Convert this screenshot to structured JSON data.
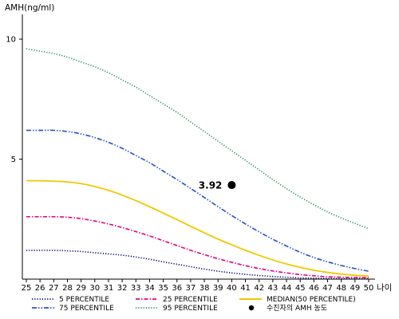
{
  "chart_data": {
    "type": "line",
    "title": "",
    "ylabel": "AMH(ng/ml)",
    "xlabel": "나이",
    "xlim": [
      25,
      50
    ],
    "ylim": [
      0,
      11
    ],
    "x_ticks": [
      25,
      26,
      27,
      28,
      29,
      30,
      31,
      32,
      33,
      34,
      35,
      36,
      37,
      38,
      39,
      40,
      41,
      42,
      43,
      44,
      45,
      46,
      47,
      48,
      49,
      50
    ],
    "y_ticks": [
      5,
      10
    ],
    "grid": false,
    "legend_placement": "bottom",
    "series": [
      {
        "name": "5 PERCENTILE",
        "color": "#000080",
        "dash": "dotted",
        "x": [
          25,
          26,
          27,
          28,
          29,
          30,
          31,
          32,
          33,
          34,
          35,
          36,
          37,
          38,
          39,
          40,
          41,
          42,
          43,
          44,
          45,
          46,
          47,
          48,
          49,
          50
        ],
        "values": [
          1.2,
          1.2,
          1.2,
          1.18,
          1.15,
          1.1,
          1.05,
          1.0,
          0.92,
          0.83,
          0.72,
          0.62,
          0.52,
          0.42,
          0.33,
          0.26,
          0.2,
          0.15,
          0.11,
          0.08,
          0.05,
          0.04,
          0.03,
          0.02,
          0.02,
          0.02
        ]
      },
      {
        "name": "25 PERCENTILE",
        "color": "#e6007e",
        "dash": "dashdot",
        "x": [
          25,
          26,
          27,
          28,
          29,
          30,
          31,
          32,
          33,
          34,
          35,
          36,
          37,
          38,
          39,
          40,
          41,
          42,
          43,
          44,
          45,
          46,
          47,
          48,
          49,
          50
        ],
        "values": [
          2.6,
          2.6,
          2.6,
          2.58,
          2.52,
          2.42,
          2.3,
          2.15,
          1.98,
          1.8,
          1.6,
          1.4,
          1.2,
          1.02,
          0.85,
          0.7,
          0.56,
          0.44,
          0.34,
          0.26,
          0.19,
          0.14,
          0.1,
          0.08,
          0.07,
          0.06
        ]
      },
      {
        "name": "MEDIAN(50 PERCENTILE)",
        "color": "#f0c800",
        "dash": "solid",
        "x": [
          25,
          26,
          27,
          28,
          29,
          30,
          31,
          32,
          33,
          34,
          35,
          36,
          37,
          38,
          39,
          40,
          41,
          42,
          43,
          44,
          45,
          46,
          47,
          48,
          49,
          50
        ],
        "values": [
          4.1,
          4.1,
          4.08,
          4.05,
          3.98,
          3.86,
          3.7,
          3.5,
          3.27,
          3.02,
          2.75,
          2.48,
          2.2,
          1.93,
          1.67,
          1.43,
          1.2,
          0.99,
          0.8,
          0.63,
          0.49,
          0.37,
          0.28,
          0.21,
          0.16,
          0.13
        ]
      },
      {
        "name": "75 PERCENTILE",
        "color": "#2a4fbf",
        "dash": "dashdotdot",
        "x": [
          25,
          26,
          27,
          28,
          29,
          30,
          31,
          32,
          33,
          34,
          35,
          36,
          37,
          38,
          39,
          40,
          41,
          42,
          43,
          44,
          45,
          46,
          47,
          48,
          49,
          50
        ],
        "values": [
          6.2,
          6.2,
          6.2,
          6.15,
          6.05,
          5.9,
          5.7,
          5.45,
          5.15,
          4.85,
          4.5,
          4.15,
          3.78,
          3.4,
          3.02,
          2.65,
          2.3,
          1.97,
          1.66,
          1.38,
          1.12,
          0.9,
          0.72,
          0.57,
          0.44,
          0.33
        ]
      },
      {
        "name": "95 PERCENTILE",
        "color": "#2e8b57",
        "dash": "dotted",
        "x": [
          25,
          26,
          27,
          28,
          29,
          30,
          31,
          32,
          33,
          34,
          35,
          36,
          37,
          38,
          39,
          40,
          41,
          42,
          43,
          44,
          45,
          46,
          47,
          48,
          49,
          50
        ],
        "values": [
          9.6,
          9.5,
          9.4,
          9.25,
          9.05,
          8.85,
          8.6,
          8.3,
          8.0,
          7.65,
          7.3,
          6.95,
          6.55,
          6.15,
          5.75,
          5.35,
          4.95,
          4.55,
          4.15,
          3.77,
          3.42,
          3.1,
          2.8,
          2.55,
          2.32,
          2.1
        ]
      }
    ],
    "annotations": [
      {
        "label": "3.92",
        "x": 40,
        "y": 3.92,
        "marker": "filled-circle",
        "color": "#000000"
      }
    ],
    "legend": [
      {
        "label": "5 PERCENTILE",
        "color": "#000080",
        "dash": "dotted"
      },
      {
        "label": "25 PERCENTILE",
        "color": "#e6007e",
        "dash": "dashdot"
      },
      {
        "label": "MEDIAN(50 PERCENTILE)",
        "color": "#f0c800",
        "dash": "solid"
      },
      {
        "label": "75 PERCENTILE",
        "color": "#2a4fbf",
        "dash": "dashdotdot"
      },
      {
        "label": "95 PERCENTILE",
        "color": "#2e8b57",
        "dash": "dotted"
      },
      {
        "label": "수진자의 AMH 농도",
        "color": "#000000",
        "dash": "marker"
      }
    ]
  }
}
